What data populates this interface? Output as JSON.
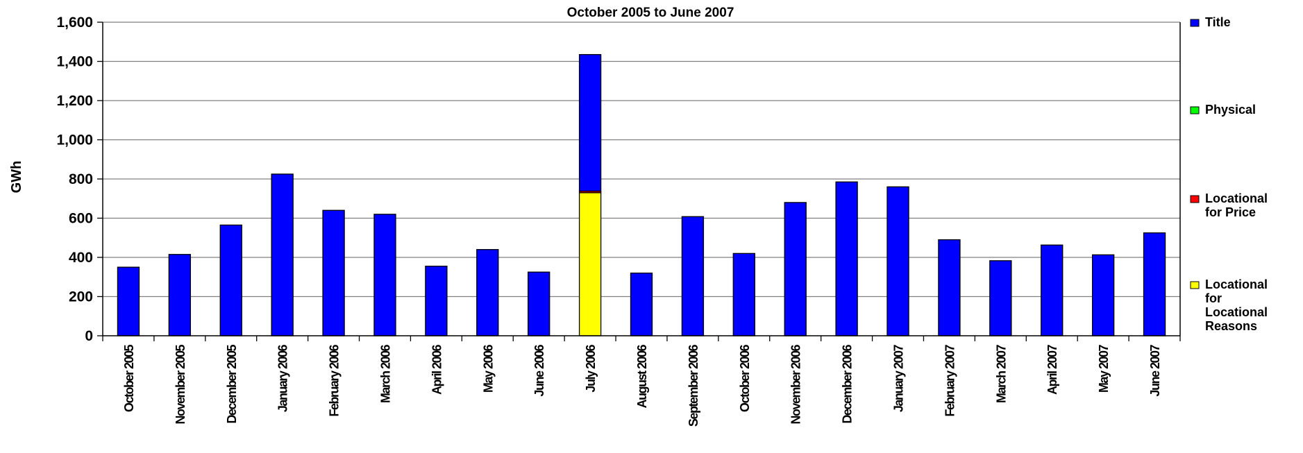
{
  "chart_data": {
    "type": "bar",
    "stacked": true,
    "title": "October 2005 to June 2007",
    "ylabel": "GWh",
    "xlabel": "",
    "ylim": [
      0,
      1600
    ],
    "yticks": [
      "0",
      "200",
      "400",
      "600",
      "800",
      "1,000",
      "1,200",
      "1,400",
      "1,600"
    ],
    "grid": true,
    "legend_position": "right",
    "categories": [
      "October 2005",
      "November 2005",
      "December 2005",
      "January 2006",
      "February 2006",
      "March 2006",
      "April 2006",
      "May 2006",
      "June 2006",
      "July 2006",
      "August 2006",
      "September 2006",
      "October 2006",
      "November 2006",
      "December 2006",
      "January 2007",
      "February 2007",
      "March 2007",
      "April 2007",
      "May 2007",
      "June 2007"
    ],
    "series": [
      {
        "name": "Locational for Locational Reasons",
        "color": "#ffff00",
        "values": [
          0,
          0,
          0,
          0,
          0,
          0,
          0,
          0,
          0,
          730,
          0,
          0,
          0,
          0,
          0,
          0,
          0,
          0,
          0,
          0,
          0
        ]
      },
      {
        "name": "Locational for Price",
        "color": "#ff0000",
        "values": [
          0,
          0,
          0,
          0,
          0,
          0,
          0,
          0,
          0,
          8,
          0,
          0,
          0,
          0,
          0,
          0,
          0,
          0,
          0,
          0,
          0
        ]
      },
      {
        "name": "Physical",
        "color": "#00ff00",
        "values": [
          0,
          0,
          0,
          0,
          0,
          0,
          0,
          0,
          0,
          0,
          0,
          0,
          0,
          0,
          0,
          0,
          0,
          0,
          0,
          0,
          0
        ]
      },
      {
        "name": "Title",
        "color": "#0000ff",
        "values": [
          350,
          415,
          565,
          825,
          640,
          620,
          355,
          440,
          325,
          697,
          320,
          608,
          420,
          680,
          785,
          760,
          490,
          383,
          463,
          413,
          525
        ]
      }
    ],
    "legend": [
      {
        "label_lines": [
          "Title"
        ],
        "color": "#0000ff"
      },
      {
        "label_lines": [
          "Physical"
        ],
        "color": "#00ff00"
      },
      {
        "label_lines": [
          "Locational",
          "for Price"
        ],
        "color": "#ff0000"
      },
      {
        "label_lines": [
          "Locational",
          "for",
          "Locational",
          "Reasons"
        ],
        "color": "#ffff00"
      }
    ]
  }
}
